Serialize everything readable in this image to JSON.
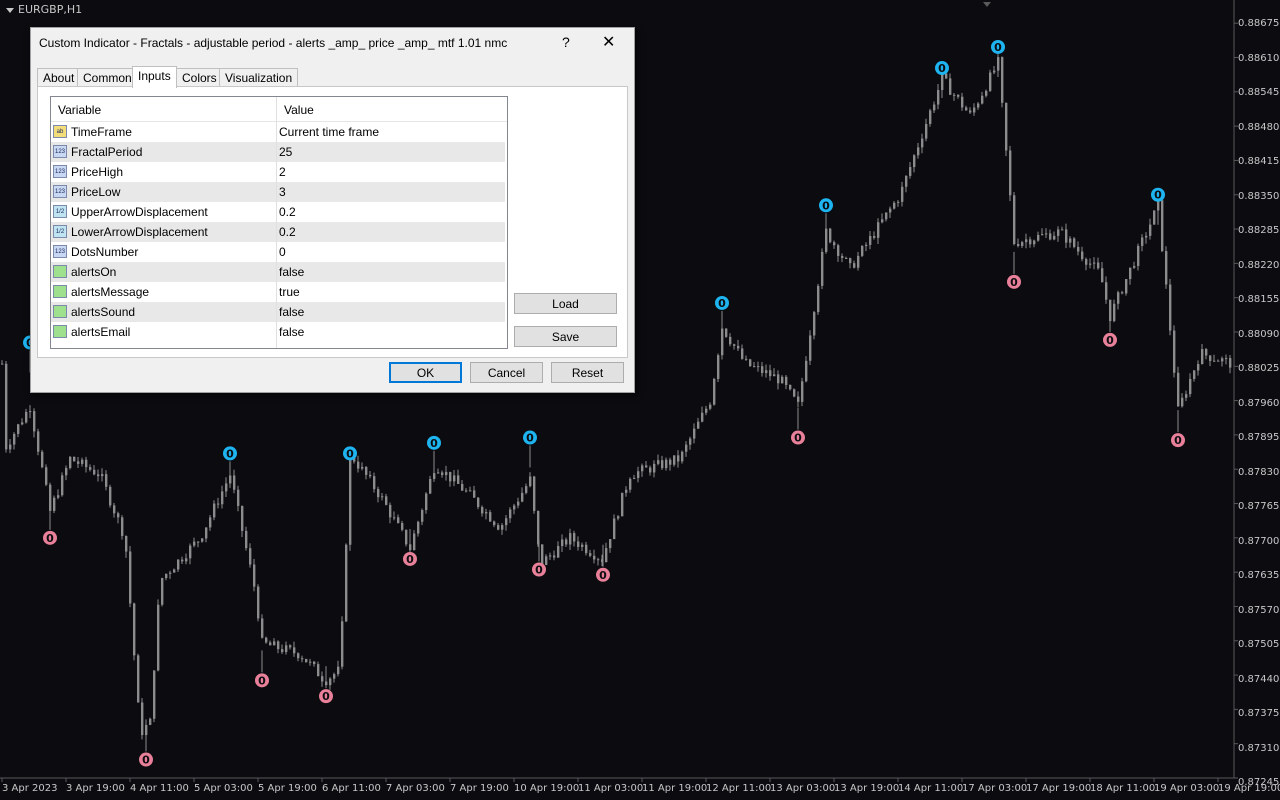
{
  "chart": {
    "symbol": "EURGBP,H1",
    "price_labels": [
      "0.88675",
      "0.88610",
      "0.88545",
      "0.88480",
      "0.88415",
      "0.88350",
      "0.88285",
      "0.88220",
      "0.88155",
      "0.88090",
      "0.88025",
      "0.87960",
      "0.87895",
      "0.87830",
      "0.87765",
      "0.87700",
      "0.87635",
      "0.87570",
      "0.87505",
      "0.87440",
      "0.87375",
      "0.87310",
      "0.87245"
    ],
    "time_labels": [
      "3 Apr 2023",
      "3 Apr 19:00",
      "4 Apr 11:00",
      "5 Apr 03:00",
      "5 Apr 19:00",
      "6 Apr 11:00",
      "7 Apr 03:00",
      "7 Apr 19:00",
      "10 Apr 19:00",
      "11 Apr 03:00",
      "11 Apr 19:00",
      "12 Apr 11:00",
      "13 Apr 03:00",
      "13 Apr 19:00",
      "14 Apr 11:00",
      "17 Apr 03:00",
      "17 Apr 19:00",
      "18 Apr 11:00",
      "19 Apr 03:00",
      "19 Apr 19:00"
    ],
    "fractal_digit": "0",
    "colors": {
      "background": "#0b0b10",
      "candle": "#8c8c8c",
      "up_fractal": "#1eb4f0",
      "down_fractal": "#e8809a",
      "text": "#c8c8c8"
    }
  },
  "chart_data": {
    "type": "candlestick",
    "title": "EURGBP,H1",
    "ylim": [
      0.87245,
      0.887
    ],
    "y_ticks": [
      0.88675,
      0.8861,
      0.88545,
      0.8848,
      0.88415,
      0.8835,
      0.88285,
      0.8822,
      0.88155,
      0.8809,
      0.88025,
      0.8796,
      0.87895,
      0.8783,
      0.87765,
      0.877,
      0.87635,
      0.8757,
      0.87505,
      0.8744,
      0.87375,
      0.8731,
      0.87245
    ],
    "close_trace": [
      {
        "x": 5,
        "y": 0.8787
      },
      {
        "x": 30,
        "y": 0.8795
      },
      {
        "x": 50,
        "y": 0.8775
      },
      {
        "x": 70,
        "y": 0.8785
      },
      {
        "x": 100,
        "y": 0.8782
      },
      {
        "x": 125,
        "y": 0.877
      },
      {
        "x": 140,
        "y": 0.8733
      },
      {
        "x": 150,
        "y": 0.8735
      },
      {
        "x": 160,
        "y": 0.8762
      },
      {
        "x": 200,
        "y": 0.877
      },
      {
        "x": 230,
        "y": 0.8782
      },
      {
        "x": 255,
        "y": 0.876
      },
      {
        "x": 262,
        "y": 0.875
      },
      {
        "x": 300,
        "y": 0.8748
      },
      {
        "x": 325,
        "y": 0.8743
      },
      {
        "x": 340,
        "y": 0.8745
      },
      {
        "x": 350,
        "y": 0.8786
      },
      {
        "x": 380,
        "y": 0.8778
      },
      {
        "x": 410,
        "y": 0.8768
      },
      {
        "x": 435,
        "y": 0.8784
      },
      {
        "x": 470,
        "y": 0.8778
      },
      {
        "x": 500,
        "y": 0.8772
      },
      {
        "x": 530,
        "y": 0.8781
      },
      {
        "x": 540,
        "y": 0.8765
      },
      {
        "x": 570,
        "y": 0.877
      },
      {
        "x": 602,
        "y": 0.8766
      },
      {
        "x": 630,
        "y": 0.8782
      },
      {
        "x": 680,
        "y": 0.8785
      },
      {
        "x": 710,
        "y": 0.8796
      },
      {
        "x": 722,
        "y": 0.881
      },
      {
        "x": 745,
        "y": 0.8803
      },
      {
        "x": 780,
        "y": 0.88
      },
      {
        "x": 798,
        "y": 0.8795
      },
      {
        "x": 826,
        "y": 0.8828
      },
      {
        "x": 850,
        "y": 0.8821
      },
      {
        "x": 900,
        "y": 0.8835
      },
      {
        "x": 942,
        "y": 0.8857
      },
      {
        "x": 970,
        "y": 0.885
      },
      {
        "x": 998,
        "y": 0.886
      },
      {
        "x": 1014,
        "y": 0.8826
      },
      {
        "x": 1060,
        "y": 0.8828
      },
      {
        "x": 1100,
        "y": 0.882
      },
      {
        "x": 1110,
        "y": 0.8812
      },
      {
        "x": 1158,
        "y": 0.8833
      },
      {
        "x": 1178,
        "y": 0.8794
      },
      {
        "x": 1200,
        "y": 0.8805
      },
      {
        "x": 1232,
        "y": 0.8803
      }
    ],
    "fractals_up": [
      {
        "x": 230,
        "y": 0.8786
      },
      {
        "x": 350,
        "y": 0.8786
      },
      {
        "x": 434,
        "y": 0.8788
      },
      {
        "x": 530,
        "y": 0.8789
      },
      {
        "x": 722,
        "y": 0.88145
      },
      {
        "x": 826,
        "y": 0.8833
      },
      {
        "x": 942,
        "y": 0.8859
      },
      {
        "x": 998,
        "y": 0.8863
      },
      {
        "x": 1158,
        "y": 0.8835
      }
    ],
    "fractals_down": [
      {
        "x": 50,
        "y": 0.877
      },
      {
        "x": 146,
        "y": 0.8728
      },
      {
        "x": 262,
        "y": 0.8743
      },
      {
        "x": 326,
        "y": 0.874
      },
      {
        "x": 410,
        "y": 0.8766
      },
      {
        "x": 539,
        "y": 0.8764
      },
      {
        "x": 603,
        "y": 0.8763
      },
      {
        "x": 798,
        "y": 0.8789
      },
      {
        "x": 1014,
        "y": 0.88185
      },
      {
        "x": 1110,
        "y": 0.88075
      },
      {
        "x": 1178,
        "y": 0.87885
      }
    ]
  },
  "dialog": {
    "title": "Custom Indicator - Fractals - adjustable period - alerts _amp_ price _amp_ mtf 1.01 nmc",
    "help": "?",
    "close": "✕",
    "tabs": [
      "About",
      "Common",
      "Inputs",
      "Colors",
      "Visualization"
    ],
    "active_tab": "Inputs",
    "grid_headers": {
      "variable": "Variable",
      "value": "Value"
    },
    "rows": [
      {
        "icon": "ab",
        "name": "TimeFrame",
        "value": "Current time frame"
      },
      {
        "icon": "123",
        "name": "FractalPeriod",
        "value": "25"
      },
      {
        "icon": "123",
        "name": "PriceHigh",
        "value": "2"
      },
      {
        "icon": "123",
        "name": "PriceLow",
        "value": "3"
      },
      {
        "icon": "1/2",
        "name": "UpperArrowDisplacement",
        "value": "0.2"
      },
      {
        "icon": "1/2",
        "name": "LowerArrowDisplacement",
        "value": "0.2"
      },
      {
        "icon": "123",
        "name": "DotsNumber",
        "value": "0"
      },
      {
        "icon": "bool",
        "name": "alertsOn",
        "value": "false"
      },
      {
        "icon": "bool",
        "name": "alertsMessage",
        "value": "true"
      },
      {
        "icon": "bool",
        "name": "alertsSound",
        "value": "false"
      },
      {
        "icon": "bool",
        "name": "alertsEmail",
        "value": "false"
      }
    ],
    "buttons": {
      "load": "Load",
      "save": "Save",
      "ok": "OK",
      "cancel": "Cancel",
      "reset": "Reset"
    }
  }
}
